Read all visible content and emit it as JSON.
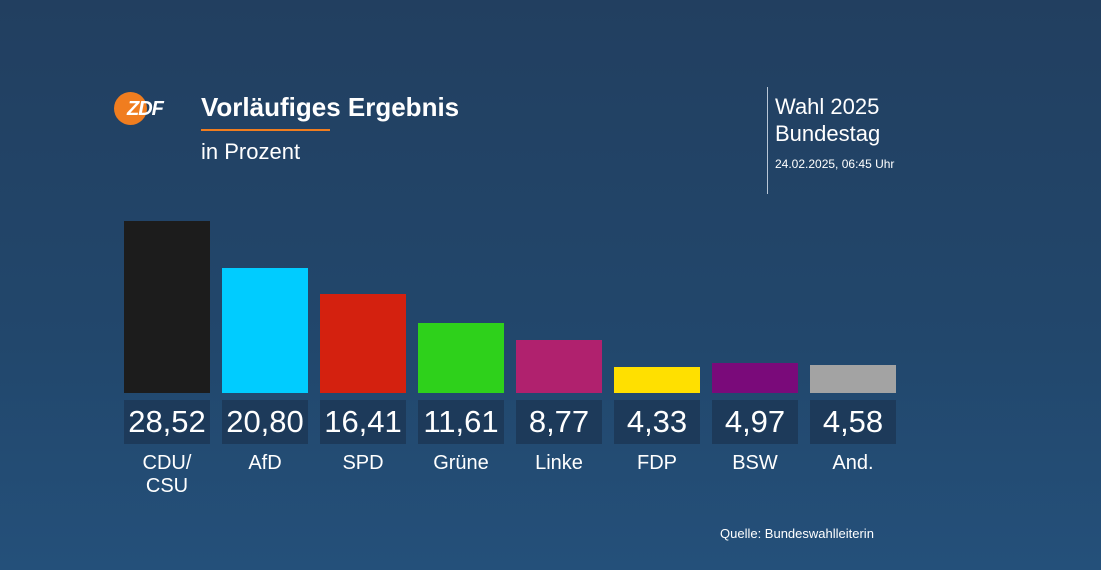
{
  "header": {
    "logo_text": "ZDF",
    "title": "Vorläufiges Ergebnis",
    "subtitle": "in Prozent",
    "election_line1": "Wahl 2025",
    "election_line2": "Bundestag",
    "timestamp": "24.02.2025, 06:45 Uhr"
  },
  "source": "Quelle: Bundeswahlleiterin",
  "colors": {
    "accent": "#f07d1f",
    "value_box": "#1d3a5a"
  },
  "chart_data": {
    "type": "bar",
    "title": "Vorläufiges Ergebnis",
    "ylabel": "in Prozent",
    "xlabel": "",
    "ylim": [
      0,
      30
    ],
    "grid": false,
    "categories": [
      "CDU/\nCSU",
      "AfD",
      "SPD",
      "Grüne",
      "Linke",
      "FDP",
      "BSW",
      "And."
    ],
    "values": [
      28.52,
      20.8,
      16.41,
      11.61,
      8.77,
      4.33,
      4.97,
      4.58
    ],
    "value_labels": [
      "28,52",
      "20,80",
      "16,41",
      "11,61",
      "8,77",
      "4,33",
      "4,97",
      "4,58"
    ],
    "colors": [
      "#1c1c1c",
      "#00ccff",
      "#d4210f",
      "#2ed11b",
      "#b0216e",
      "#ffe000",
      "#7a0a7a",
      "#a3a3a3"
    ]
  }
}
